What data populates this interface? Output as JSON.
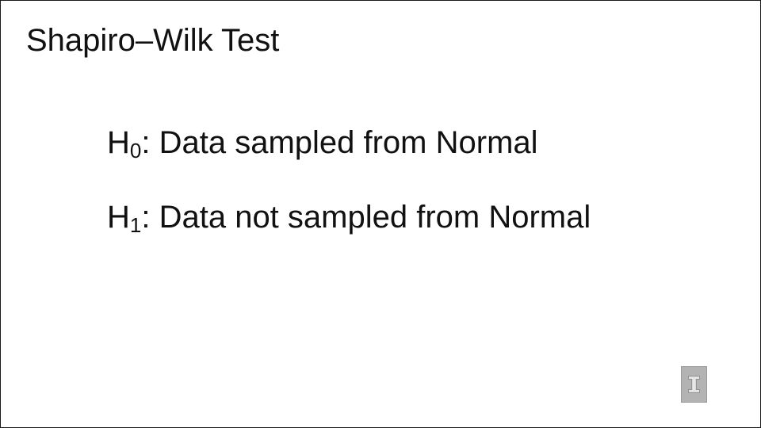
{
  "slide": {
    "title": "Shapiro–Wilk Test",
    "hypotheses": [
      {
        "symbol": "H",
        "subscript": "0",
        "text": ": Data sampled from Normal"
      },
      {
        "symbol": "H",
        "subscript": "1",
        "text": ": Data not sampled from Normal"
      }
    ],
    "logo": {
      "icon": "block-i-logo-icon",
      "color": "#b3b3b3"
    }
  }
}
